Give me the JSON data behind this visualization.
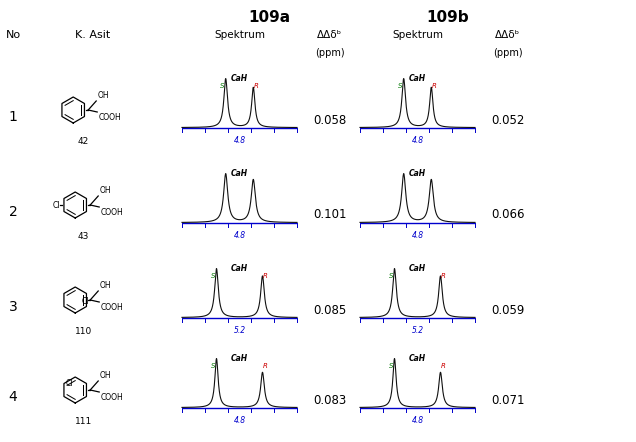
{
  "title_109a": "109a",
  "title_109b": "109b",
  "rows": [
    {
      "no": "1",
      "compound": "42",
      "dd_109a": "0.058",
      "dd_109b": "0.052",
      "xaxis_a": "4.8",
      "xaxis_b": "4.8",
      "peaks_a": [
        0.38,
        0.62
      ],
      "peaks_b": [
        0.38,
        0.62
      ],
      "show_sr_a": true,
      "show_sr_b": true
    },
    {
      "no": "2",
      "compound": "43",
      "dd_109a": "0.101",
      "dd_109b": "0.066",
      "xaxis_a": "4.8",
      "xaxis_b": "4.8",
      "peaks_a": [
        0.38,
        0.62
      ],
      "peaks_b": [
        0.38,
        0.62
      ],
      "show_sr_a": false,
      "show_sr_b": false
    },
    {
      "no": "3",
      "compound": "110",
      "dd_109a": "0.085",
      "dd_109b": "0.059",
      "xaxis_a": "5.2",
      "xaxis_b": "5.2",
      "peaks_a": [
        0.3,
        0.7
      ],
      "peaks_b": [
        0.3,
        0.7
      ],
      "show_sr_a": true,
      "show_sr_b": true
    },
    {
      "no": "4",
      "compound": "111",
      "dd_109a": "0.083",
      "dd_109b": "0.071",
      "xaxis_a": "4.8",
      "xaxis_b": "4.8",
      "peaks_a": [
        0.3,
        0.7
      ],
      "peaks_b": [
        0.3,
        0.7
      ],
      "show_sr_a": true,
      "show_sr_b": true
    }
  ],
  "bg_color": "#ffffff",
  "peak_color": "#111111",
  "axis_color": "#0000cc",
  "s_color": "#007700",
  "r_color": "#cc0000",
  "label_color": "#000000",
  "figsize": [
    6.36,
    4.42
  ],
  "dpi": 100
}
